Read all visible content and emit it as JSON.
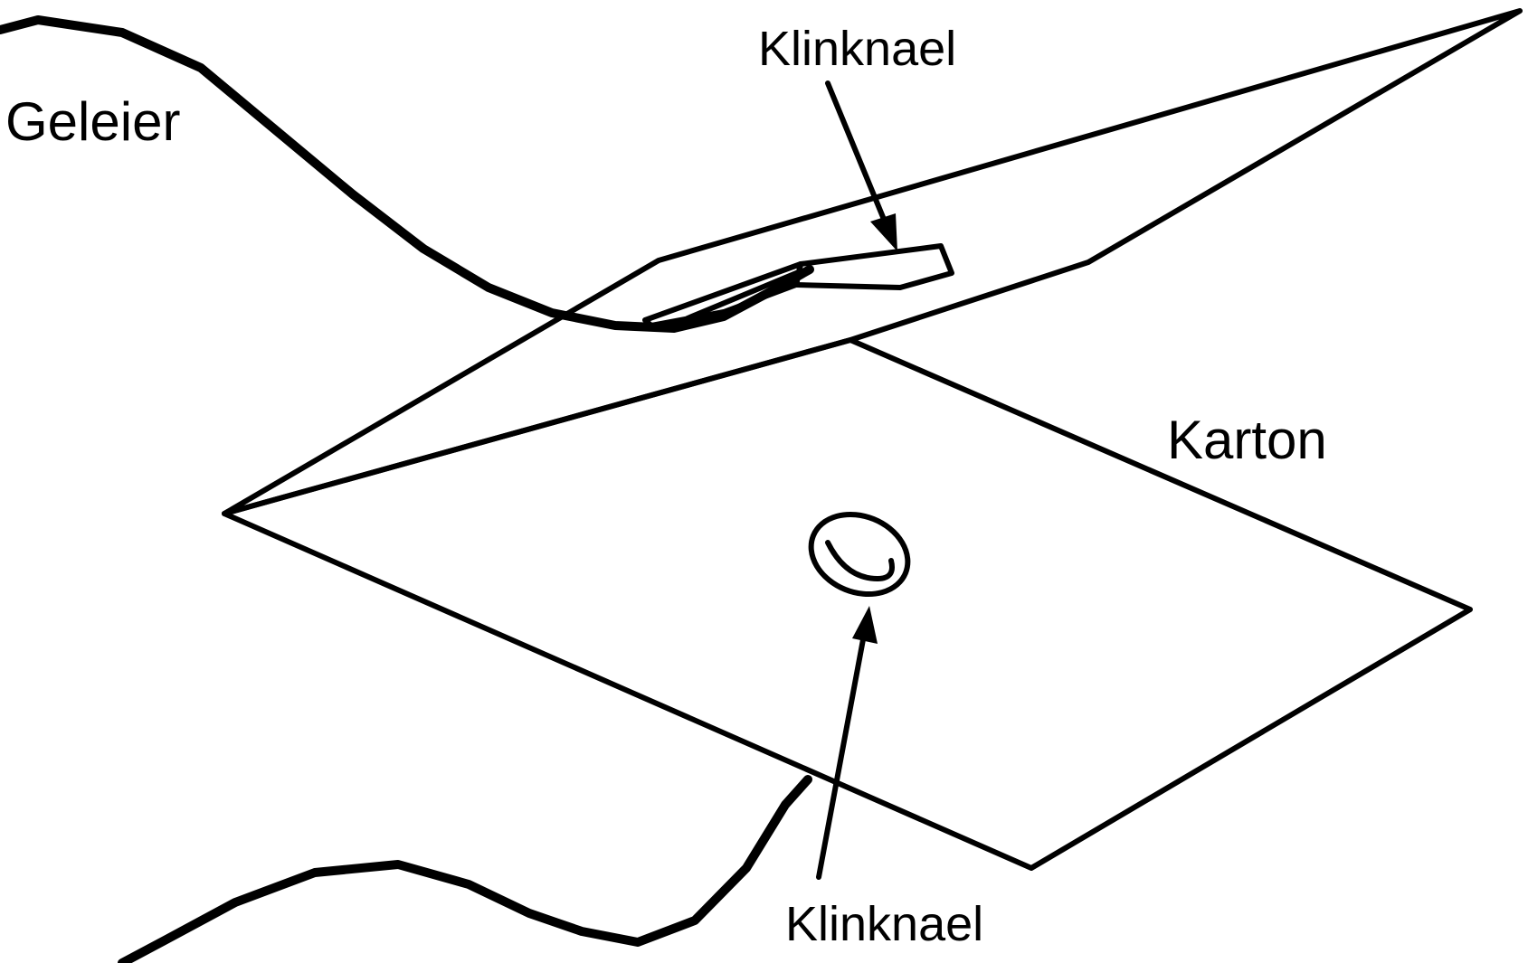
{
  "labels": {
    "wire": "Geleier",
    "clip_top": "Klinknael",
    "card": "Karton",
    "clip_bottom": "Klinknael"
  },
  "colors": {
    "line": "#000000",
    "background": "#ffffff"
  }
}
